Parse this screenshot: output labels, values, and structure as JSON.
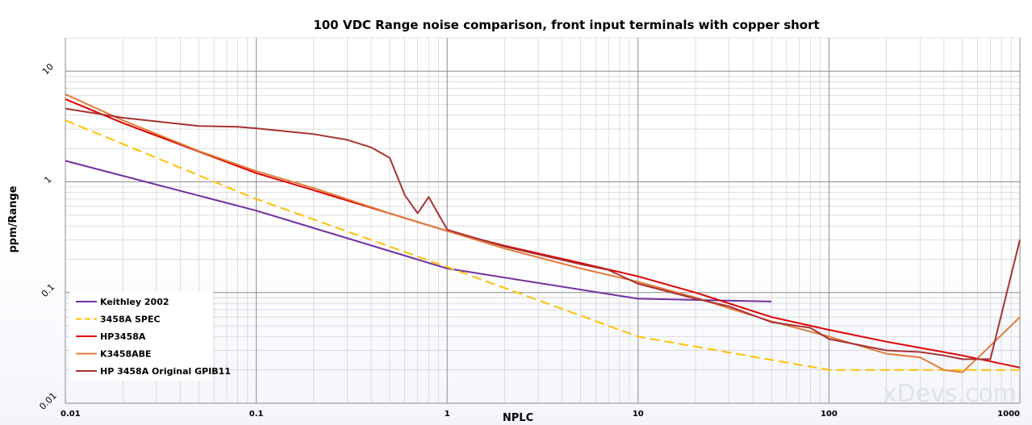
{
  "chart_data": {
    "type": "line",
    "title": "100 VDC Range noise comparison, front input terminals with copper short",
    "xlabel": "NPLC",
    "ylabel": "ppm/Range",
    "xscale": "log",
    "yscale": "log",
    "xlim": [
      0.01,
      1000
    ],
    "ylim": [
      0.01,
      20
    ],
    "x_ticks": [
      "0.01",
      "0.1",
      "1",
      "10",
      "100",
      "1000"
    ],
    "y_ticks": [
      "0.01",
      "0.1",
      "1",
      "10"
    ],
    "grid": true,
    "legend": "bottom-left",
    "series": [
      {
        "name": "Keithley 2002",
        "color": "#7030a0",
        "dash": false,
        "points": [
          [
            0.01,
            1.55
          ],
          [
            0.1,
            0.55
          ],
          [
            1,
            0.165
          ],
          [
            10,
            0.088
          ],
          [
            50,
            0.083
          ]
        ]
      },
      {
        "name": "3458A SPEC",
        "color": "#ffc000",
        "dash": true,
        "points": [
          [
            0.01,
            3.6
          ],
          [
            0.1,
            0.7
          ],
          [
            1,
            0.17
          ],
          [
            10,
            0.04
          ],
          [
            100,
            0.02
          ],
          [
            1000,
            0.02
          ]
        ]
      },
      {
        "name": "HP3458A",
        "color": "#e00000",
        "dash": false,
        "points": [
          [
            0.01,
            5.6
          ],
          [
            0.02,
            3.4
          ],
          [
            0.1,
            1.2
          ],
          [
            0.2,
            0.84
          ],
          [
            1,
            0.36
          ],
          [
            2,
            0.265
          ],
          [
            5,
            0.185
          ],
          [
            10,
            0.14
          ],
          [
            20,
            0.1
          ],
          [
            50,
            0.06
          ],
          [
            100,
            0.046
          ],
          [
            200,
            0.036
          ],
          [
            500,
            0.027
          ],
          [
            1000,
            0.021
          ]
        ]
      },
      {
        "name": "K3458ABE",
        "color": "#e07b39",
        "dash": false,
        "points": [
          [
            0.01,
            6.2
          ],
          [
            0.02,
            3.6
          ],
          [
            0.05,
            1.9
          ],
          [
            0.1,
            1.25
          ],
          [
            0.2,
            0.88
          ],
          [
            0.5,
            0.52
          ],
          [
            1,
            0.36
          ],
          [
            2,
            0.25
          ],
          [
            5,
            0.165
          ],
          [
            10,
            0.125
          ],
          [
            20,
            0.09
          ],
          [
            30,
            0.072
          ],
          [
            50,
            0.055
          ],
          [
            100,
            0.04
          ],
          [
            200,
            0.028
          ],
          [
            300,
            0.026
          ],
          [
            400,
            0.02
          ],
          [
            500,
            0.019
          ],
          [
            700,
            0.033
          ],
          [
            1000,
            0.06
          ]
        ]
      },
      {
        "name": "HP 3458A Original GPIB11",
        "color": "#a83232",
        "dash": false,
        "points": [
          [
            0.01,
            4.6
          ],
          [
            0.02,
            3.8
          ],
          [
            0.05,
            3.2
          ],
          [
            0.08,
            3.15
          ],
          [
            0.1,
            3.05
          ],
          [
            0.2,
            2.7
          ],
          [
            0.3,
            2.4
          ],
          [
            0.4,
            2.05
          ],
          [
            0.5,
            1.65
          ],
          [
            0.6,
            0.76
          ],
          [
            0.7,
            0.52
          ],
          [
            0.8,
            0.73
          ],
          [
            1,
            0.37
          ],
          [
            2,
            0.26
          ],
          [
            5,
            0.18
          ],
          [
            7,
            0.16
          ],
          [
            10,
            0.12
          ],
          [
            20,
            0.088
          ],
          [
            30,
            0.075
          ],
          [
            50,
            0.054
          ],
          [
            80,
            0.048
          ],
          [
            100,
            0.038
          ],
          [
            200,
            0.03
          ],
          [
            300,
            0.029
          ],
          [
            400,
            0.027
          ],
          [
            500,
            0.025
          ],
          [
            700,
            0.025
          ],
          [
            1000,
            0.3
          ]
        ]
      }
    ],
    "watermark": "xDevs.com"
  }
}
